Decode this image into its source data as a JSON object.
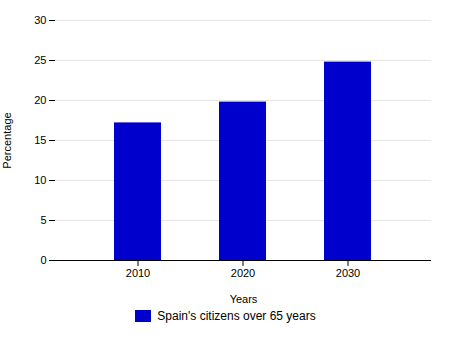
{
  "chart_data": {
    "type": "bar",
    "categories": [
      "2010",
      "2020",
      "2030"
    ],
    "series": [
      {
        "name": "Spain's citizens over 65 years",
        "color": "#0000CC",
        "values": [
          17.2,
          19.8,
          24.8
        ]
      }
    ],
    "xlabel": "Years",
    "ylabel": "Percentage",
    "ylim": [
      0,
      30
    ],
    "yticks": [
      0,
      5,
      10,
      15,
      20,
      25,
      30
    ],
    "grid": true,
    "legend": "bottom"
  }
}
